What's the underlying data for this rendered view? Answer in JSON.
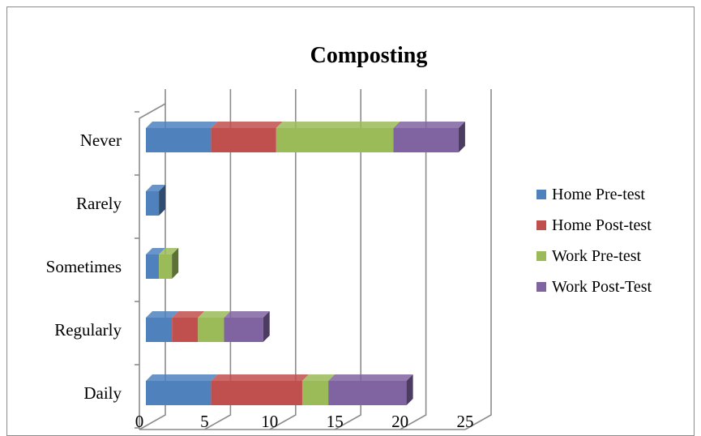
{
  "chart_data": {
    "type": "bar",
    "orientation": "horizontal",
    "stacked": true,
    "three_d": true,
    "title": "Composting",
    "xlabel": "",
    "ylabel": "",
    "categories": [
      "Daily",
      "Regularly",
      "Sometimes",
      "Rarely",
      "Never"
    ],
    "xlim": [
      0,
      25
    ],
    "xticks": [
      "0",
      "5",
      "10",
      "15",
      "20",
      "25"
    ],
    "grid": true,
    "legend_position": "right",
    "series": [
      {
        "name": "Home Pre-test",
        "color": "#4f81bd",
        "values": [
          5,
          2,
          1,
          1,
          5
        ]
      },
      {
        "name": "Home Post-test",
        "color": "#c0504d",
        "values": [
          7,
          2,
          0,
          0,
          5
        ]
      },
      {
        "name": "Work Pre-test",
        "color": "#9bbb59",
        "values": [
          2,
          2,
          1,
          0,
          9
        ]
      },
      {
        "name": "Work Post-Test",
        "color": "#8064a2",
        "values": [
          6,
          3,
          0,
          0,
          5
        ]
      }
    ]
  }
}
